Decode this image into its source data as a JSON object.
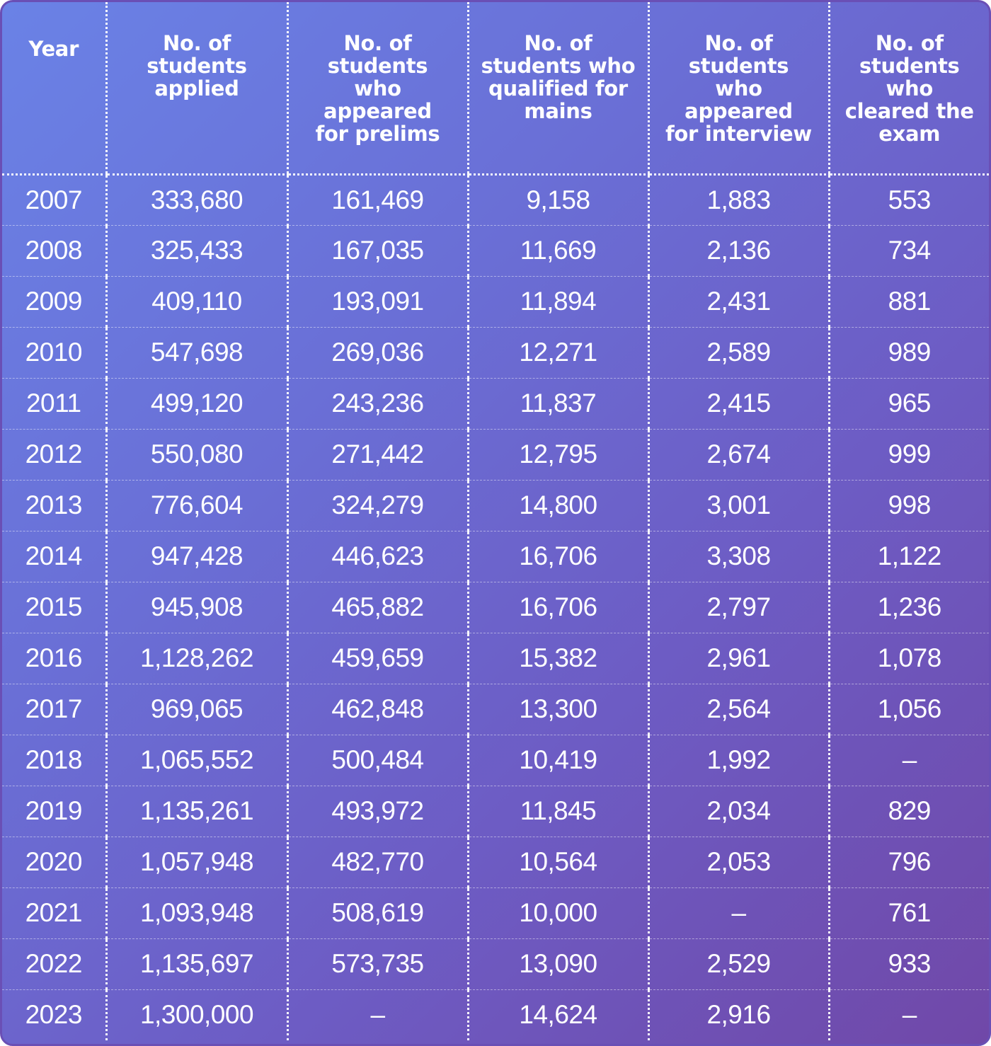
{
  "table": {
    "headers": [
      "Year",
      "No. of students applied",
      "No. of students who appeared for prelims",
      "No. of students who qualified for mains",
      "No. of students who appeared for interview",
      "No. of students who cleared the exam"
    ],
    "header_lines": [
      [
        "Year"
      ],
      [
        "No. of",
        "students",
        "applied"
      ],
      [
        "No. of",
        "students",
        "who",
        "appeared",
        "for prelims"
      ],
      [
        "No. of",
        "students who",
        "qualified for",
        "mains"
      ],
      [
        "No. of",
        "students",
        "who",
        "appeared",
        "for interview"
      ],
      [
        "No. of",
        "students",
        "who",
        "cleared the",
        "exam"
      ]
    ],
    "rows": [
      [
        "2007",
        "333,680",
        "161,469",
        "9,158",
        "1,883",
        "553"
      ],
      [
        "2008",
        "325,433",
        "167,035",
        "11,669",
        "2,136",
        "734"
      ],
      [
        "2009",
        "409,110",
        "193,091",
        "11,894",
        "2,431",
        "881"
      ],
      [
        "2010",
        "547,698",
        "269,036",
        "12,271",
        "2,589",
        "989"
      ],
      [
        "2011",
        "499,120",
        "243,236",
        "11,837",
        "2,415",
        "965"
      ],
      [
        "2012",
        "550,080",
        "271,442",
        "12,795",
        "2,674",
        "999"
      ],
      [
        "2013",
        "776,604",
        "324,279",
        "14,800",
        "3,001",
        "998"
      ],
      [
        "2014",
        "947,428",
        "446,623",
        "16,706",
        "3,308",
        "1,122"
      ],
      [
        "2015",
        "945,908",
        "465,882",
        "16,706",
        "2,797",
        "1,236"
      ],
      [
        "2016",
        "1,128,262",
        "459,659",
        "15,382",
        "2,961",
        "1,078"
      ],
      [
        "2017",
        "969,065",
        "462,848",
        "13,300",
        "2,564",
        "1,056"
      ],
      [
        "2018",
        "1,065,552",
        "500,484",
        "10,419",
        "1,992",
        "–"
      ],
      [
        "2019",
        "1,135,261",
        "493,972",
        "11,845",
        "2,034",
        "829"
      ],
      [
        "2020",
        "1,057,948",
        "482,770",
        "10,564",
        "2,053",
        "796"
      ],
      [
        "2021",
        "1,093,948",
        "508,619",
        "10,000",
        "–",
        "761"
      ],
      [
        "2022",
        "1,135,697",
        "573,735",
        "13,090",
        "2,529",
        "933"
      ],
      [
        "2023",
        "1,300,000",
        "–",
        "14,624",
        "2,916",
        "–"
      ]
    ]
  },
  "colors": {
    "gradient_start": "#6a82e6",
    "gradient_end": "#7048a8",
    "border": "#6a4fb5",
    "text": "#ffffff"
  }
}
